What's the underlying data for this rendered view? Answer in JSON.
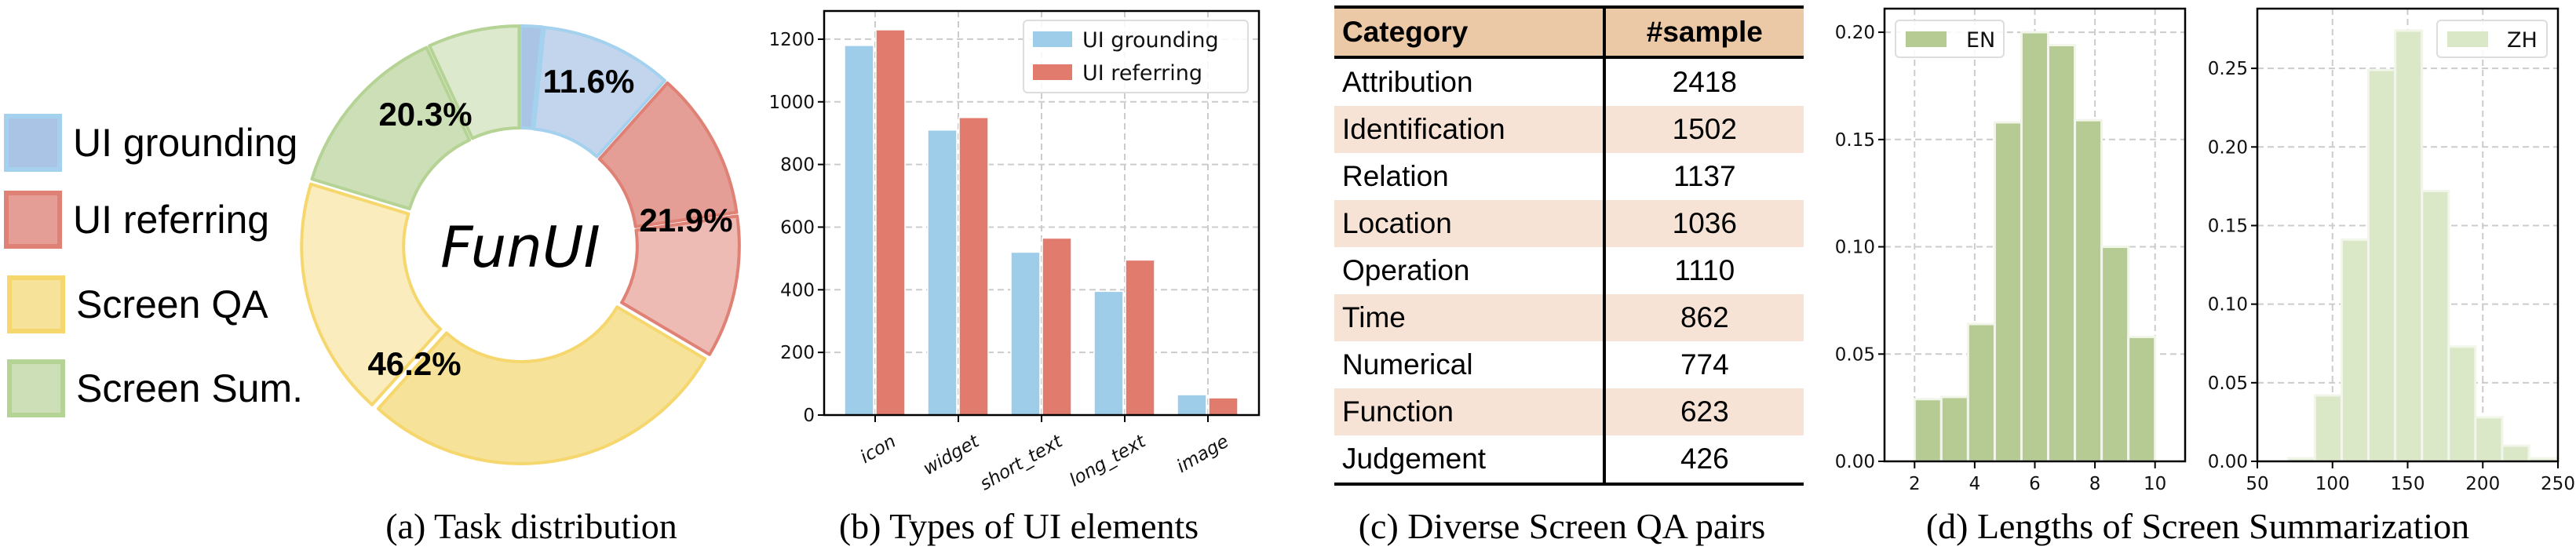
{
  "captions": {
    "a": "(a) Task distribution",
    "b": "(b) Types of UI elements",
    "c": "(c) Diverse Screen QA pairs",
    "d": "(d) Lengths of Screen Summarization"
  },
  "chart_data": [
    {
      "type": "pie",
      "variant": "donut",
      "center_label": "FunUI",
      "legend": {
        "placement": "left"
      },
      "slices": [
        {
          "name": "UI grounding",
          "value": 11.6,
          "label": "11.6%",
          "dark_share": 0.14,
          "colors": {
            "dark": "#a9c4e4",
            "light": "#c2d5ec",
            "edge": "#a3d1ee"
          }
        },
        {
          "name": "UI referring",
          "value": 21.9,
          "label": "21.9%",
          "dark_share": 0.51,
          "colors": {
            "dark": "#e59e96",
            "light": "#edbbb4",
            "edge": "#df8175"
          }
        },
        {
          "name": "Screen QA",
          "value": 46.2,
          "label": "46.2%",
          "dark_share": 0.61,
          "colors": {
            "dark": "#f6e298",
            "light": "#faecbc",
            "edge": "#f5d76e"
          }
        },
        {
          "name": "Screen Sum.",
          "value": 20.3,
          "label": "20.3%",
          "dark_share": 0.66,
          "colors": {
            "dark": "#cddfb7",
            "light": "#dce9cd",
            "edge": "#b5d394"
          }
        }
      ]
    },
    {
      "type": "bar",
      "categories": [
        "icon",
        "widget",
        "short_text",
        "long_text",
        "image"
      ],
      "series": [
        {
          "name": "UI grounding",
          "values": [
            1180,
            910,
            520,
            395,
            65
          ],
          "color": "#9ecde9"
        },
        {
          "name": "UI referring",
          "values": [
            1230,
            950,
            565,
            495,
            55
          ],
          "color": "#e07b6e"
        }
      ],
      "yticks": [
        0,
        200,
        400,
        600,
        800,
        1000,
        1200
      ],
      "ylim": [
        0,
        1290
      ],
      "grid": true,
      "legend": "top-right"
    },
    {
      "type": "table",
      "columns": [
        "Category",
        "#sample"
      ],
      "rows": [
        [
          "Attribution",
          "2418"
        ],
        [
          "Identification",
          "1502"
        ],
        [
          "Relation",
          "1137"
        ],
        [
          "Location",
          "1036"
        ],
        [
          "Operation",
          "1110"
        ],
        [
          "Time",
          "862"
        ],
        [
          "Numerical",
          "774"
        ],
        [
          "Function",
          "623"
        ],
        [
          "Judgement",
          "426"
        ]
      ]
    },
    {
      "type": "bar",
      "histogram": true,
      "series": [
        {
          "name": "EN",
          "color": "#b5cb93"
        }
      ],
      "bin_range": [
        2,
        10
      ],
      "values": [
        0.029,
        0.03,
        0.064,
        0.158,
        0.2,
        0.194,
        0.159,
        0.1,
        0.058
      ],
      "xticks": [
        2,
        4,
        6,
        8,
        10
      ],
      "yticks": [
        "0.00",
        "0.05",
        "0.10",
        "0.15",
        "0.20"
      ],
      "xlim": [
        1,
        11
      ],
      "ylim": [
        0,
        0.211
      ],
      "grid": true,
      "legend": "top-left"
    },
    {
      "type": "bar",
      "histogram": true,
      "series": [
        {
          "name": "ZH",
          "color": "#dbe8c7"
        }
      ],
      "bin_range": [
        70.5,
        248.5
      ],
      "values": [
        0.002,
        0.042,
        0.141,
        0.249,
        0.274,
        0.172,
        0.073,
        0.028,
        0.01,
        0.002
      ],
      "xticks": [
        50,
        100,
        150,
        200,
        250
      ],
      "yticks": [
        "0.00",
        "0.05",
        "0.10",
        "0.15",
        "0.20",
        "0.25"
      ],
      "xlim": [
        50,
        250
      ],
      "ylim": [
        0,
        0.288
      ],
      "grid": true,
      "legend": "top-right"
    }
  ]
}
